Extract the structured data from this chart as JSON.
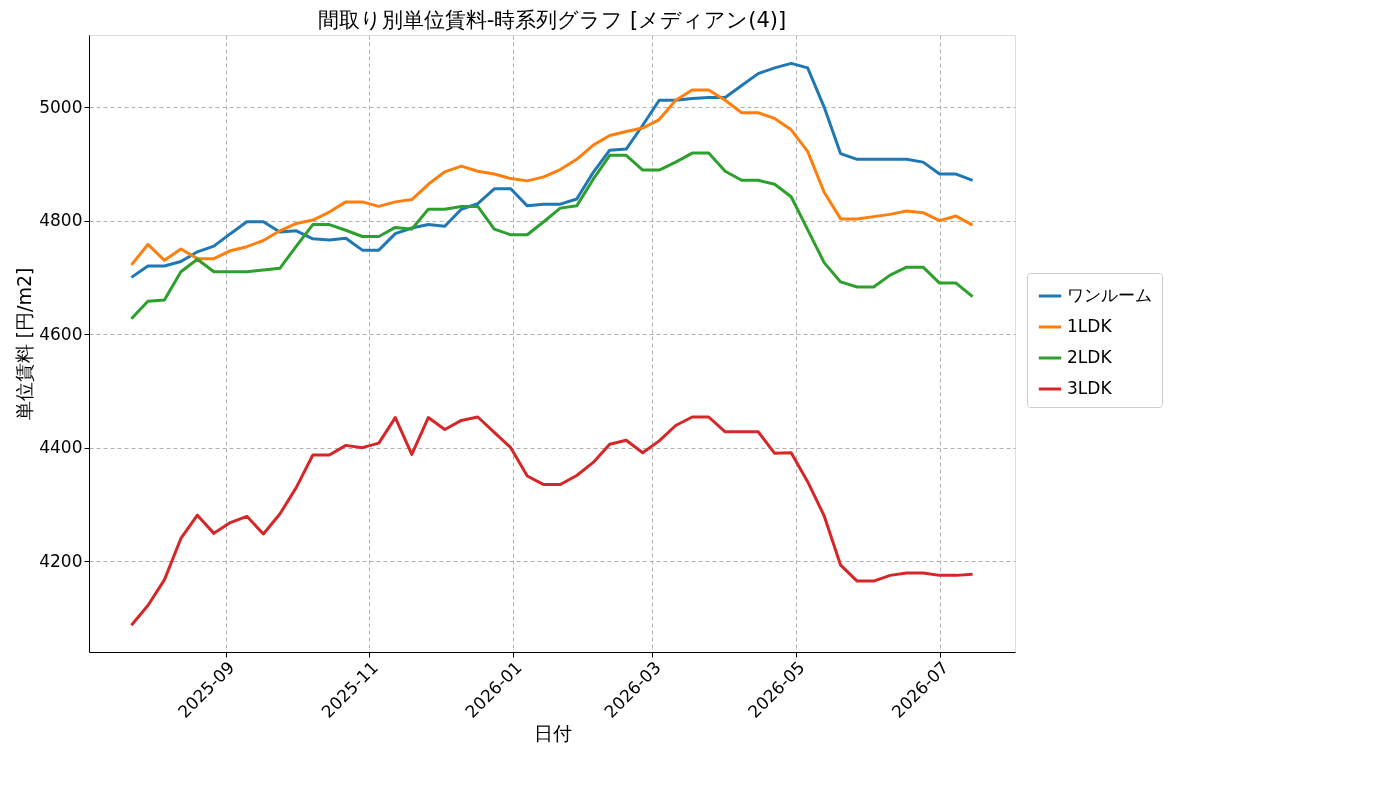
{
  "chart_data": {
    "type": "line",
    "title": "間取り別単位賃料-時系列グラフ [メディアン(4)]",
    "xlabel": "日付",
    "ylabel": "単位賃料 [円/m2]",
    "x": [
      "2025-07-23",
      "2025-07-30",
      "2025-08-06",
      "2025-08-13",
      "2025-08-20",
      "2025-08-27",
      "2025-09-03",
      "2025-09-10",
      "2025-09-17",
      "2025-09-24",
      "2025-10-01",
      "2025-10-08",
      "2025-10-15",
      "2025-10-22",
      "2025-10-29",
      "2025-11-05",
      "2025-11-12",
      "2025-11-19",
      "2025-11-26",
      "2025-12-03",
      "2025-12-10",
      "2025-12-17",
      "2025-12-24",
      "2025-12-31",
      "2026-01-07",
      "2026-01-14",
      "2026-01-21",
      "2026-01-28",
      "2026-02-04",
      "2026-02-11",
      "2026-02-18",
      "2026-02-25",
      "2026-03-04",
      "2026-03-11",
      "2026-03-18",
      "2026-03-25",
      "2026-04-01",
      "2026-04-08",
      "2026-04-15",
      "2026-04-22",
      "2026-04-29",
      "2026-05-06",
      "2026-05-13",
      "2026-05-20",
      "2026-05-27",
      "2026-06-03",
      "2026-06-10",
      "2026-06-17",
      "2026-06-24",
      "2026-07-01",
      "2026-07-08",
      "2026-07-15"
    ],
    "series": [
      {
        "name": "ワンルーム",
        "color": "#1f77b4",
        "values": [
          4700,
          4720,
          4720,
          4728,
          4745,
          4755,
          4777,
          4798,
          4798,
          4780,
          4782,
          4768,
          4766,
          4769,
          4748,
          4748,
          4777,
          4787,
          4793,
          4790,
          4820,
          4830,
          4856,
          4856,
          4826,
          4829,
          4829,
          4838,
          4885,
          4924,
          4926,
          4968,
          5012,
          5012,
          5015,
          5017,
          5017,
          5038,
          5059,
          5069,
          5077,
          5069,
          5000,
          4918,
          4908,
          4908,
          4908,
          4908,
          4903,
          4882,
          4882,
          4871
        ]
      },
      {
        "name": "1LDK",
        "color": "#ff7f0e",
        "values": [
          4722,
          4758,
          4730,
          4750,
          4733,
          4733,
          4747,
          4754,
          4765,
          4782,
          4795,
          4801,
          4815,
          4833,
          4833,
          4825,
          4833,
          4837,
          4864,
          4886,
          4896,
          4887,
          4882,
          4874,
          4870,
          4877,
          4890,
          4908,
          4933,
          4950,
          4957,
          4963,
          4978,
          5012,
          5030,
          5030,
          5012,
          4990,
          4990,
          4980,
          4960,
          4922,
          4850,
          4803,
          4803,
          4807,
          4811,
          4817,
          4814,
          4800,
          4808,
          4792
        ]
      },
      {
        "name": "2LDK",
        "color": "#2ca02c",
        "values": [
          4627,
          4658,
          4660,
          4710,
          4732,
          4710,
          4710,
          4710,
          4713,
          4716,
          4755,
          4793,
          4793,
          4783,
          4772,
          4772,
          4788,
          4785,
          4820,
          4820,
          4825,
          4825,
          4785,
          4775,
          4775,
          4798,
          4822,
          4826,
          4873,
          4915,
          4915,
          4889,
          4889,
          4903,
          4919,
          4919,
          4887,
          4871,
          4871,
          4864,
          4842,
          4784,
          4726,
          4692,
          4683,
          4683,
          4704,
          4718,
          4718,
          4690,
          4690,
          4666
        ]
      },
      {
        "name": "3LDK",
        "color": "#d62728",
        "values": [
          4087,
          4122,
          4167,
          4240,
          4281,
          4249,
          4268,
          4279,
          4248,
          4283,
          4330,
          4387,
          4387,
          4404,
          4400,
          4408,
          4453,
          4388,
          4453,
          4432,
          4448,
          4454,
          4427,
          4400,
          4350,
          4335,
          4335,
          4351,
          4374,
          4406,
          4413,
          4391,
          4412,
          4439,
          4454,
          4454,
          4428,
          4428,
          4428,
          4390,
          4391,
          4340,
          4280,
          4193,
          4165,
          4165,
          4175,
          4179,
          4179,
          4175,
          4175,
          4177
        ]
      }
    ],
    "xlim": [
      "2025-07-05",
      "2026-08-02"
    ],
    "xticks": [
      "2025-09",
      "2025-11",
      "2026-01",
      "2026-03",
      "2026-05",
      "2026-07"
    ],
    "ylim": [
      4040,
      5127
    ],
    "yticks": [
      4200,
      4400,
      4600,
      4800,
      5000
    ],
    "grid": true,
    "legend": "right",
    "line_style": "solid",
    "marker": "none"
  }
}
